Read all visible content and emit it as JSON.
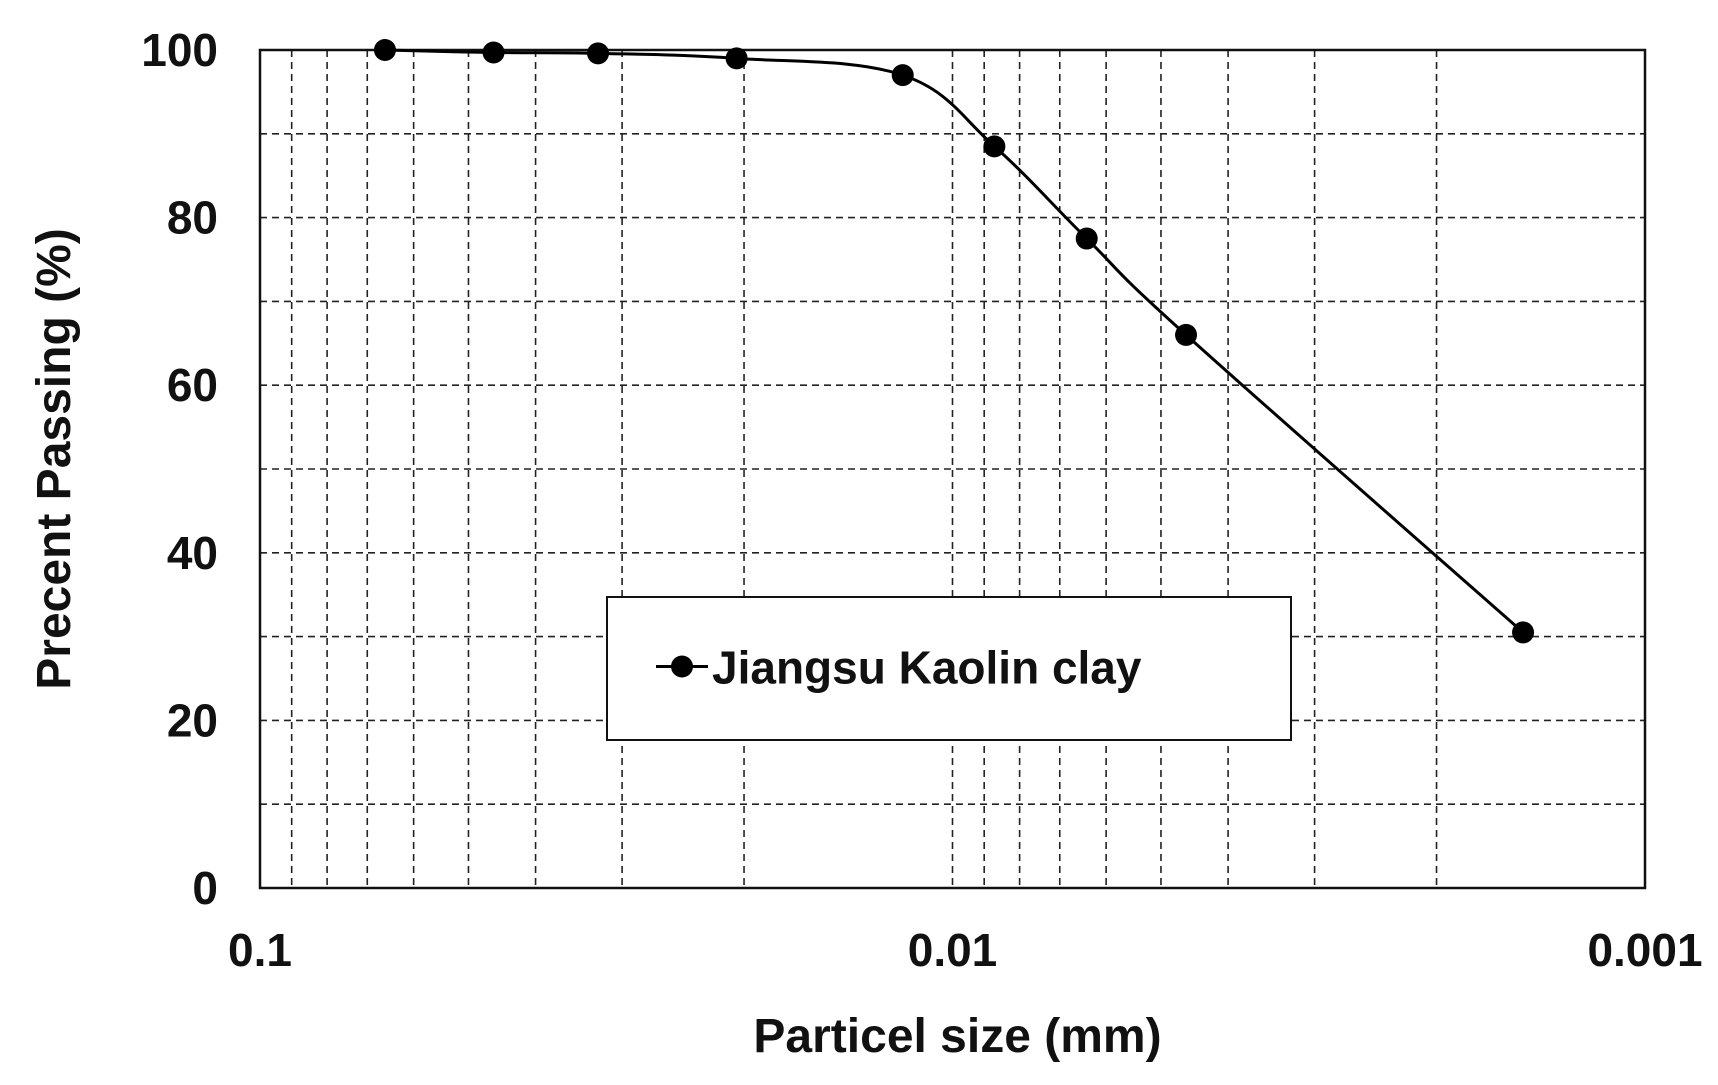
{
  "chart_data": {
    "type": "line",
    "xlabel": "Particel size (mm)",
    "ylabel": "Precent Passing (%)",
    "x_scale": "log",
    "x_reversed": true,
    "xlim": [
      0.1,
      0.001
    ],
    "ylim": [
      0,
      100
    ],
    "x_ticks": [
      {
        "value": 0.1,
        "label": "0.1"
      },
      {
        "value": 0.01,
        "label": "0.01"
      },
      {
        "value": 0.001,
        "label": "0.001"
      }
    ],
    "y_ticks": [
      {
        "value": 0,
        "label": "0"
      },
      {
        "value": 20,
        "label": "20"
      },
      {
        "value": 40,
        "label": "40"
      },
      {
        "value": 60,
        "label": "60"
      },
      {
        "value": 80,
        "label": "80"
      },
      {
        "value": 100,
        "label": "100"
      }
    ],
    "grid": true,
    "grid_style": "dashed",
    "legend_position": "lower-center",
    "series": [
      {
        "name": "Jiangsu Kaolin clay",
        "color": "#000000",
        "marker": "circle",
        "x": [
          0.066,
          0.046,
          0.0325,
          0.0205,
          0.0118,
          0.0087,
          0.0064,
          0.0046,
          0.0015
        ],
        "y": [
          100,
          99.7,
          99.6,
          99,
          97,
          88.5,
          77.5,
          66,
          30.5
        ]
      }
    ]
  }
}
